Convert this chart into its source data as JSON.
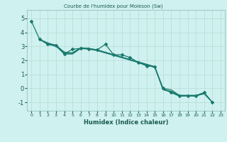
{
  "title": "Courbe de l'humidex pour Moleson (Sw)",
  "xlabel": "Humidex (Indice chaleur)",
  "background_color": "#cff1ef",
  "grid_color": "#b8dbd8",
  "line_color": "#1a7a6e",
  "xlim": [
    -0.5,
    23.5
  ],
  "ylim": [
    -1.6,
    5.6
  ],
  "yticks": [
    -1,
    0,
    1,
    2,
    3,
    4,
    5
  ],
  "xticks": [
    0,
    1,
    2,
    3,
    4,
    5,
    6,
    7,
    8,
    9,
    10,
    11,
    12,
    13,
    14,
    15,
    16,
    17,
    18,
    19,
    20,
    21,
    22,
    23
  ],
  "series": [
    [
      4.8,
      3.5,
      3.15,
      3.05,
      2.45,
      2.8,
      2.85,
      2.8,
      2.75,
      3.15,
      2.4,
      2.4,
      2.2,
      1.85,
      1.6,
      1.55,
      0.0,
      -0.3,
      -0.55,
      -0.55,
      -0.55,
      -0.3,
      -1.0,
      null
    ],
    [
      null,
      3.5,
      3.15,
      3.0,
      2.5,
      2.5,
      2.9,
      2.85,
      2.75,
      null,
      null,
      null,
      null,
      null,
      null,
      1.5,
      0.0,
      -0.1,
      -0.5,
      -0.5,
      -0.5,
      -0.4,
      -1.0,
      null
    ],
    [
      null,
      3.5,
      3.2,
      3.1,
      2.55,
      2.55,
      2.9,
      2.8,
      2.7,
      null,
      null,
      null,
      null,
      null,
      null,
      1.55,
      -0.1,
      -0.2,
      -0.5,
      -0.5,
      -0.5,
      -0.3,
      -1.0,
      null
    ],
    [
      null,
      3.5,
      3.25,
      3.05,
      2.6,
      2.5,
      2.9,
      2.85,
      2.75,
      null,
      null,
      null,
      null,
      null,
      null,
      1.55,
      -0.1,
      -0.25,
      -0.55,
      -0.55,
      -0.55,
      -0.35,
      null,
      null
    ],
    [
      null,
      3.5,
      3.15,
      3.05,
      2.45,
      2.45,
      2.85,
      2.85,
      2.7,
      null,
      null,
      null,
      null,
      null,
      null,
      1.5,
      -0.05,
      -0.3,
      -0.55,
      -0.55,
      -0.55,
      -0.35,
      null,
      null
    ]
  ]
}
